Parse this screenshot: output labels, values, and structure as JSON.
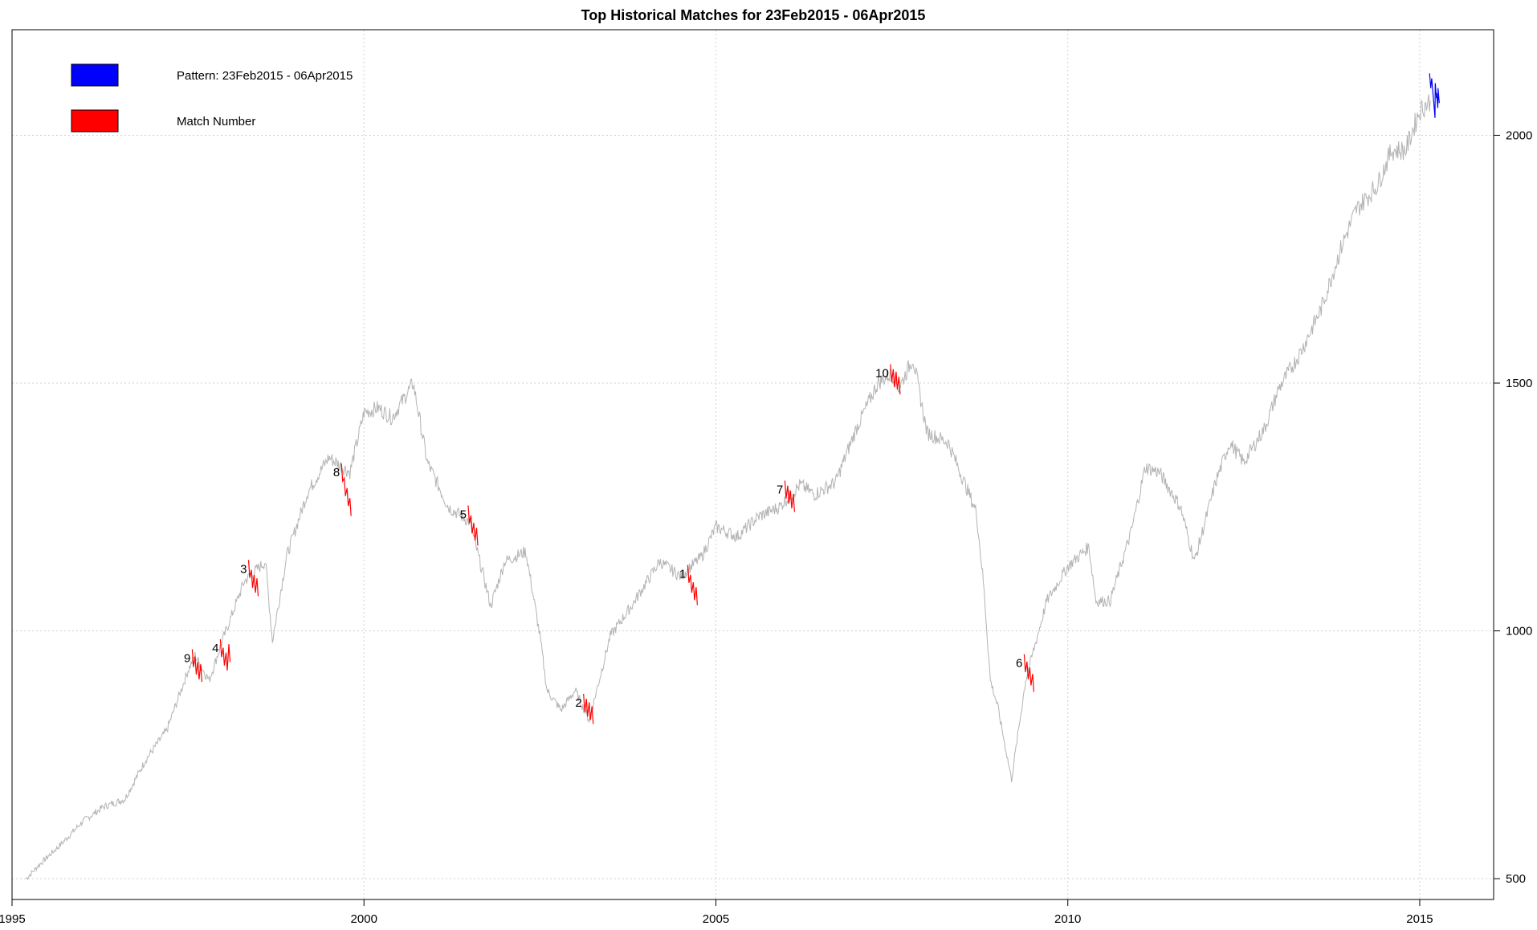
{
  "chart_data": {
    "type": "line",
    "title": "Top Historical Matches for  23Feb2015 - 06Apr2015",
    "xlabel": "",
    "ylabel": "",
    "xlim": [
      1995.0,
      2016.05
    ],
    "ylim": [
      458,
      2213
    ],
    "x_ticks": [
      1995,
      2000,
      2005,
      2010,
      2015
    ],
    "x_tick_labels": [
      "1995",
      "2000",
      "2005",
      "2010",
      "2015"
    ],
    "y_ticks": [
      500,
      1000,
      1500,
      2000
    ],
    "y_tick_labels": [
      "500",
      "1000",
      "1500",
      "2000"
    ],
    "y_axis_side": "right",
    "grid": true,
    "legend_position": "top-left",
    "legend": [
      {
        "label": "Pattern:   23Feb2015 - 06Apr2015",
        "color": "#0000ff"
      },
      {
        "label": "Match Number",
        "color": "#ff0000"
      }
    ],
    "series": [
      {
        "role": "history",
        "color": "#b3b3b3",
        "x": [
          1995.2,
          1995.4,
          1995.7,
          1996.0,
          1996.3,
          1996.6,
          1996.9,
          1997.2,
          1997.5,
          1997.6,
          1997.8,
          1998.0,
          1998.3,
          1998.6,
          1998.7,
          1998.9,
          1999.2,
          1999.5,
          1999.8,
          2000.0,
          2000.2,
          2000.4,
          2000.7,
          2000.9,
          2001.2,
          2001.5,
          2001.7,
          2001.8,
          2002.0,
          2002.3,
          2002.5,
          2002.6,
          2002.8,
          2003.0,
          2003.2,
          2003.5,
          2003.8,
          2004.2,
          2004.5,
          2004.8,
          2005.0,
          2005.3,
          2005.6,
          2005.9,
          2006.2,
          2006.4,
          2006.7,
          2007.0,
          2007.3,
          2007.5,
          2007.6,
          2007.8,
          2008.0,
          2008.3,
          2008.5,
          2008.7,
          2008.8,
          2008.9,
          2009.0,
          2009.2,
          2009.4,
          2009.7,
          2010.0,
          2010.3,
          2010.4,
          2010.6,
          2010.9,
          2011.1,
          2011.3,
          2011.6,
          2011.8,
          2012.1,
          2012.3,
          2012.5,
          2012.8,
          2013.0,
          2013.3,
          2013.6,
          2013.9,
          2014.1,
          2014.4,
          2014.6,
          2014.8,
          2015.0,
          2015.15
        ],
        "y": [
          500,
          530,
          570,
          615,
          645,
          660,
          740,
          800,
          920,
          950,
          900,
          985,
          1100,
          1140,
          980,
          1150,
          1280,
          1350,
          1320,
          1440,
          1450,
          1430,
          1500,
          1340,
          1250,
          1220,
          1110,
          1050,
          1140,
          1160,
          990,
          880,
          840,
          880,
          820,
          990,
          1050,
          1140,
          1110,
          1150,
          1210,
          1190,
          1230,
          1250,
          1295,
          1275,
          1300,
          1410,
          1500,
          1520,
          1490,
          1550,
          1400,
          1380,
          1310,
          1240,
          1100,
          900,
          850,
          700,
          900,
          1060,
          1130,
          1170,
          1060,
          1060,
          1200,
          1330,
          1320,
          1250,
          1140,
          1300,
          1380,
          1340,
          1410,
          1490,
          1560,
          1650,
          1780,
          1850,
          1900,
          1970,
          1970,
          2050,
          2070
        ]
      },
      {
        "role": "pattern",
        "name": "Pattern",
        "color": "#0000ff",
        "x": [
          2015.14,
          2015.17,
          2015.2,
          2015.22,
          2015.24,
          2015.26
        ],
        "y": [
          2110,
          2100,
          2050,
          2090,
          2070,
          2080
        ]
      }
    ],
    "matches": [
      {
        "number": "1",
        "color": "#ff0000",
        "x": [
          2004.6,
          2004.64,
          2004.68,
          2004.72
        ],
        "y": [
          1115,
          1095,
          1080,
          1070
        ]
      },
      {
        "number": "2",
        "color": "#ff0000",
        "x": [
          2003.12,
          2003.16,
          2003.2,
          2003.24
        ],
        "y": [
          855,
          845,
          838,
          830
        ]
      },
      {
        "number": "3",
        "color": "#ff0000",
        "x": [
          1998.36,
          1998.4,
          1998.44,
          1998.48
        ],
        "y": [
          1125,
          1105,
          1095,
          1088
        ]
      },
      {
        "number": "4",
        "color": "#ff0000",
        "x": [
          1997.96,
          1998.0,
          1998.04,
          1998.08
        ],
        "y": [
          965,
          948,
          938,
          955
        ]
      },
      {
        "number": "5",
        "color": "#ff0000",
        "x": [
          2001.48,
          2001.52,
          2001.56,
          2001.6
        ],
        "y": [
          1235,
          1215,
          1200,
          1190
        ]
      },
      {
        "number": "6",
        "color": "#ff0000",
        "x": [
          2009.38,
          2009.42,
          2009.46,
          2009.5
        ],
        "y": [
          935,
          920,
          908,
          895
        ]
      },
      {
        "number": "7",
        "color": "#ff0000",
        "x": [
          2005.98,
          2006.02,
          2006.06,
          2006.1
        ],
        "y": [
          1285,
          1275,
          1265,
          1258
        ]
      },
      {
        "number": "8",
        "color": "#ff0000",
        "x": [
          1999.68,
          1999.72,
          1999.76,
          1999.8
        ],
        "y": [
          1320,
          1290,
          1270,
          1250
        ]
      },
      {
        "number": "9",
        "color": "#ff0000",
        "x": [
          1997.56,
          1997.6,
          1997.64,
          1997.68
        ],
        "y": [
          945,
          930,
          920,
          915
        ]
      },
      {
        "number": "10",
        "color": "#ff0000",
        "x": [
          2007.48,
          2007.52,
          2007.56,
          2007.6
        ],
        "y": [
          1520,
          1510,
          1505,
          1495
        ]
      }
    ]
  }
}
